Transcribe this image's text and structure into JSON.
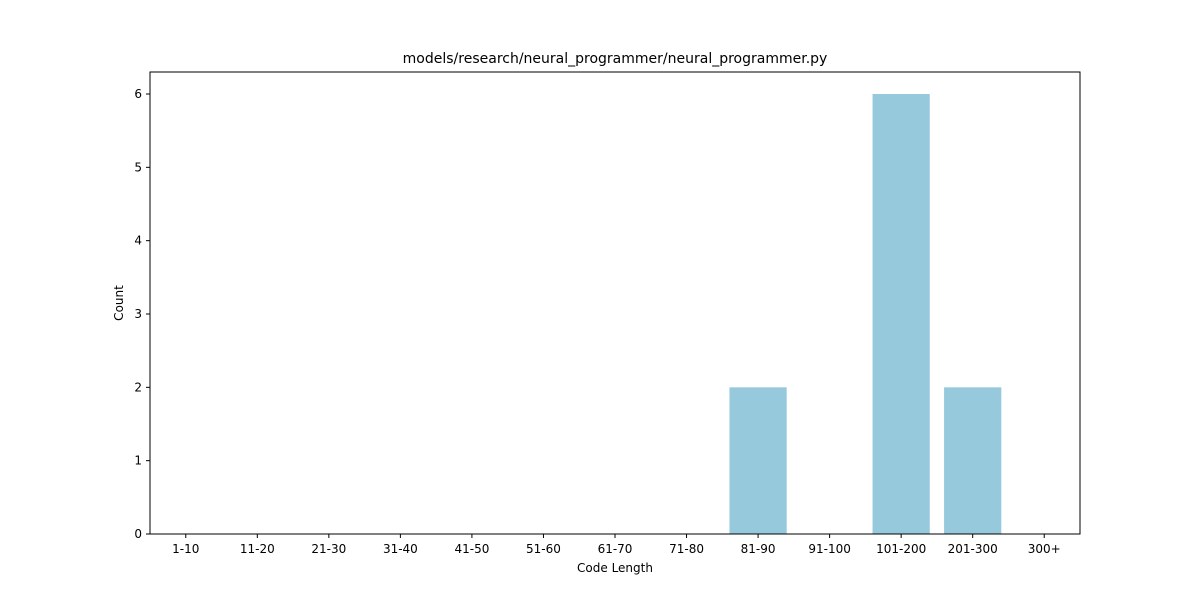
{
  "chart_data": {
    "type": "bar",
    "title": "models/research/neural_programmer/neural_programmer.py",
    "xlabel": "Code Length",
    "ylabel": "Count",
    "categories": [
      "1-10",
      "11-20",
      "21-30",
      "31-40",
      "41-50",
      "51-60",
      "61-70",
      "71-80",
      "81-90",
      "91-100",
      "101-200",
      "201-300",
      "300+"
    ],
    "values": [
      0,
      0,
      0,
      0,
      0,
      0,
      0,
      0,
      2,
      0,
      6,
      2,
      0
    ],
    "ylim": [
      0,
      6.3
    ],
    "yticks": [
      0,
      1,
      2,
      3,
      4,
      5,
      6
    ],
    "grid": false,
    "bar_color": "#96c9dc"
  }
}
